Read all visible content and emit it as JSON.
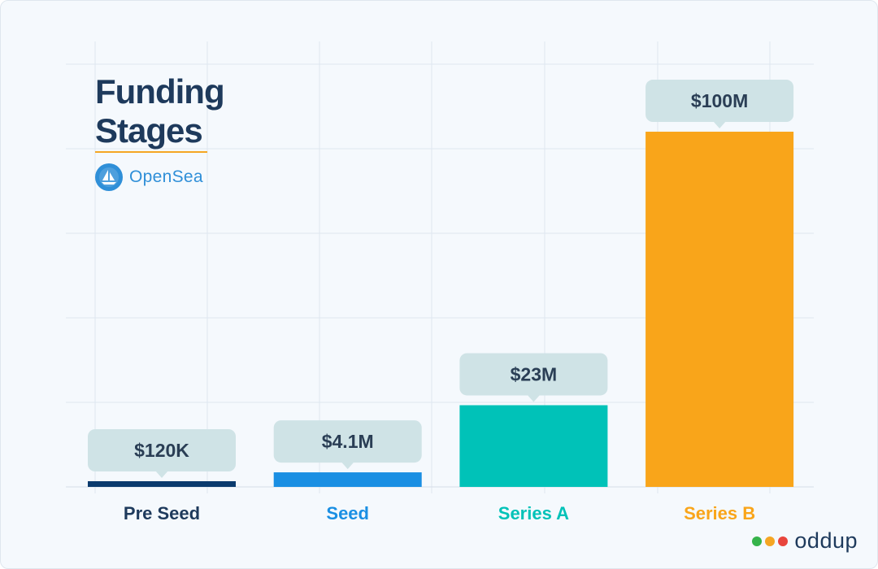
{
  "title": "Funding Stages",
  "company": {
    "name": "OpenSea",
    "logo_icon": "sailboat-icon",
    "color": "#2f8fd8"
  },
  "source": {
    "name": "oddup",
    "dot_colors": [
      "#35b34a",
      "#f5a623",
      "#e8453c"
    ]
  },
  "chart_data": {
    "type": "bar",
    "title": "Funding Stages",
    "categories": [
      "Pre Seed",
      "Seed",
      "Series A",
      "Series B"
    ],
    "values": [
      0.12,
      4.1,
      23,
      100
    ],
    "value_labels": [
      "$120K",
      "$4.1M",
      "$23M",
      "$100M"
    ],
    "unit": "$M",
    "colors": [
      "#0b3b6e",
      "#1a8fe3",
      "#00c2b8",
      "#f9a51a"
    ],
    "ylim": [
      0,
      119
    ],
    "grid": true,
    "show_y_axis": false
  }
}
